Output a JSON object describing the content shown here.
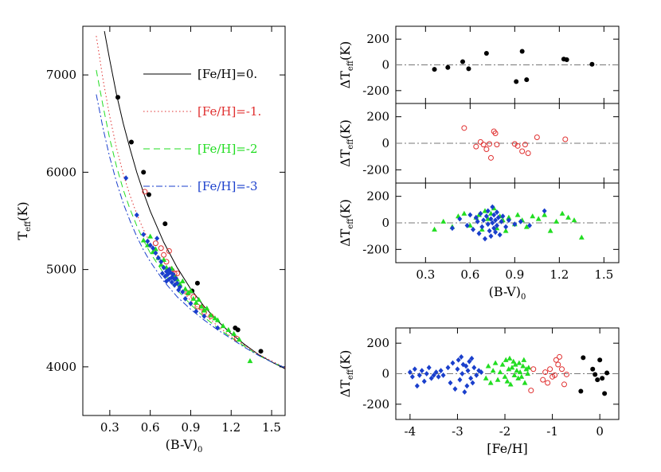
{
  "colors": {
    "fe0": "#000000",
    "fe-1": "#e03030",
    "fe-2": "#22dd22",
    "fe-3": "#1a3fcc",
    "zero_line": "#777777"
  },
  "chart_data": [
    {
      "id": "main",
      "type": "scatter",
      "xlabel": "(B-V)",
      "xlabel_sub": "0",
      "ylabel": "T",
      "ylabel_sub": "eff",
      "ylabel_suffix": "(K)",
      "xlim": [
        0.1,
        1.6
      ],
      "ylim": [
        3500,
        7500
      ],
      "xticks": [
        "0.3",
        "0.6",
        "0.9",
        "1.2",
        "1.5"
      ],
      "yticks": [
        "4000",
        "5000",
        "6000",
        "7000"
      ],
      "legend": [
        {
          "label": "[Fe/H]=0.",
          "series": "fe0"
        },
        {
          "label": "[Fe/H]=-1.",
          "series": "fe-1"
        },
        {
          "label": "[Fe/H]=-2",
          "series": "fe-2"
        },
        {
          "label": "[Fe/H]=-3",
          "series": "fe-3"
        }
      ],
      "curves": [
        {
          "series": "fe0",
          "style": "solid",
          "x": [
            0.26,
            0.3,
            0.35,
            0.4,
            0.45,
            0.5,
            0.55,
            0.6,
            0.7,
            0.8,
            0.9,
            1.0,
            1.1,
            1.2,
            1.3,
            1.4,
            1.5,
            1.6
          ],
          "y": [
            7450,
            7150,
            6800,
            6500,
            6240,
            6000,
            5790,
            5600,
            5280,
            5020,
            4800,
            4620,
            4470,
            4340,
            4230,
            4130,
            4050,
            3980
          ]
        },
        {
          "series": "fe-1",
          "style": "dotted",
          "x": [
            0.2,
            0.25,
            0.3,
            0.35,
            0.4,
            0.45,
            0.5,
            0.55,
            0.6,
            0.7,
            0.8,
            0.9,
            1.0,
            1.1,
            1.2,
            1.3,
            1.4,
            1.5,
            1.6
          ],
          "y": [
            7400,
            6950,
            6570,
            6250,
            5980,
            5760,
            5570,
            5410,
            5270,
            5030,
            4840,
            4680,
            4540,
            4420,
            4310,
            4220,
            4130,
            4060,
            3990
          ]
        },
        {
          "series": "fe-2",
          "style": "dashed",
          "x": [
            0.2,
            0.25,
            0.3,
            0.35,
            0.4,
            0.45,
            0.5,
            0.55,
            0.6,
            0.7,
            0.8,
            0.9,
            1.0,
            1.1,
            1.2,
            1.3,
            1.4,
            1.5,
            1.6
          ],
          "y": [
            7050,
            6680,
            6340,
            6060,
            5820,
            5620,
            5450,
            5300,
            5170,
            4960,
            4790,
            4640,
            4510,
            4400,
            4300,
            4210,
            4120,
            4050,
            3990
          ]
        },
        {
          "series": "fe-3",
          "style": "dashdot",
          "x": [
            0.2,
            0.25,
            0.3,
            0.35,
            0.4,
            0.45,
            0.5,
            0.55,
            0.6,
            0.7,
            0.8,
            0.9,
            1.0,
            1.1,
            1.2,
            1.3,
            1.4,
            1.5,
            1.6
          ],
          "y": [
            6800,
            6450,
            6150,
            5900,
            5680,
            5500,
            5340,
            5200,
            5080,
            4880,
            4720,
            4590,
            4480,
            4380,
            4290,
            4200,
            4120,
            4050,
            3990
          ]
        }
      ],
      "points": [
        {
          "series": "fe0",
          "marker": "dot",
          "x": [
            0.36,
            0.46,
            0.55,
            0.59,
            0.71,
            0.91,
            0.95,
            1.23,
            1.25,
            1.42
          ],
          "y": [
            6770,
            6310,
            6000,
            5770,
            5470,
            4780,
            4860,
            4400,
            4380,
            4160
          ]
        },
        {
          "series": "fe-1",
          "marker": "open-circle",
          "x": [
            0.56,
            0.64,
            0.68,
            0.7,
            0.72,
            0.74,
            0.75,
            0.76,
            0.78,
            0.8,
            0.88,
            0.92,
            0.95,
            0.98,
            1.0,
            1.05,
            1.24
          ],
          "y": [
            5800,
            5270,
            5220,
            5150,
            5080,
            5190,
            5000,
            4990,
            4960,
            4960,
            4760,
            4720,
            4620,
            4610,
            4560,
            4520,
            4290
          ]
        },
        {
          "series": "fe-2",
          "marker": "triangle",
          "x": [
            0.55,
            0.58,
            0.6,
            0.62,
            0.64,
            0.66,
            0.68,
            0.7,
            0.72,
            0.74,
            0.76,
            0.78,
            0.8,
            0.82,
            0.84,
            0.86,
            0.88,
            0.9,
            0.92,
            0.94,
            0.96,
            0.98,
            1.0,
            1.02,
            1.05,
            1.08,
            1.1,
            1.14,
            1.18,
            1.22,
            1.26,
            1.34
          ],
          "y": [
            5300,
            5250,
            5340,
            5180,
            5210,
            5120,
            5050,
            5100,
            5020,
            4980,
            5010,
            4930,
            4900,
            4850,
            4880,
            4800,
            4760,
            4780,
            4700,
            4660,
            4690,
            4620,
            4580,
            4600,
            4530,
            4500,
            4480,
            4420,
            4380,
            4340,
            4280,
            4060
          ]
        },
        {
          "series": "fe-3",
          "marker": "diamond",
          "x": [
            0.42,
            0.5,
            0.55,
            0.58,
            0.6,
            0.62,
            0.64,
            0.65,
            0.66,
            0.68,
            0.69,
            0.7,
            0.71,
            0.72,
            0.72,
            0.73,
            0.74,
            0.74,
            0.75,
            0.76,
            0.76,
            0.77,
            0.78,
            0.78,
            0.79,
            0.8,
            0.81,
            0.82,
            0.84,
            0.86,
            0.9,
            0.94,
            1.0,
            1.1
          ],
          "y": [
            5940,
            5560,
            5360,
            5290,
            5250,
            5220,
            5170,
            5320,
            5120,
            5080,
            4960,
            5020,
            4930,
            4980,
            4880,
            4950,
            5000,
            4900,
            4970,
            4920,
            4870,
            4950,
            4900,
            4840,
            4910,
            4860,
            4790,
            4820,
            4770,
            4700,
            4650,
            4570,
            4520,
            4400
          ]
        }
      ]
    },
    {
      "id": "resid-fe0",
      "type": "scatter",
      "ylabel": "ΔT",
      "ylabel_sub": "eff",
      "ylabel_suffix": "(K)",
      "xlim": [
        0.1,
        1.6
      ],
      "ylim": [
        -300,
        300
      ],
      "yticks": [
        "200",
        "0",
        "-200"
      ],
      "points": [
        {
          "series": "fe0",
          "marker": "dot",
          "x": [
            0.36,
            0.45,
            0.55,
            0.59,
            0.71,
            0.91,
            0.95,
            0.98,
            1.23,
            1.25,
            1.42
          ],
          "y": [
            -35,
            -20,
            25,
            -30,
            90,
            -130,
            105,
            -115,
            45,
            40,
            5
          ]
        }
      ]
    },
    {
      "id": "resid-fe-1",
      "type": "scatter",
      "ylabel": "ΔT",
      "ylabel_sub": "eff",
      "ylabel_suffix": "(K)",
      "xlim": [
        0.1,
        1.6
      ],
      "ylim": [
        -300,
        300
      ],
      "yticks": [
        "200",
        "0",
        "-200"
      ],
      "points": [
        {
          "series": "fe-1",
          "marker": "open-circle",
          "x": [
            0.56,
            0.64,
            0.67,
            0.69,
            0.71,
            0.73,
            0.74,
            0.76,
            0.77,
            0.78,
            0.9,
            0.92,
            0.95,
            0.97,
            0.99,
            1.05,
            1.24
          ],
          "y": [
            115,
            -25,
            10,
            -10,
            -45,
            -5,
            -110,
            90,
            75,
            -10,
            -5,
            -20,
            -60,
            -10,
            -75,
            45,
            30
          ]
        }
      ]
    },
    {
      "id": "resid-mp",
      "type": "scatter",
      "ylabel": "ΔT",
      "ylabel_sub": "eff",
      "ylabel_suffix": "(K)",
      "xlabel": "(B-V)",
      "xlabel_sub": "0",
      "xlim": [
        0.1,
        1.6
      ],
      "ylim": [
        -300,
        300
      ],
      "xticks": [
        "0.3",
        "0.6",
        "0.9",
        "1.2",
        "1.5"
      ],
      "yticks": [
        "200",
        "0",
        "-200"
      ],
      "points": [
        {
          "series": "fe-2",
          "marker": "triangle",
          "x": [
            0.36,
            0.42,
            0.48,
            0.52,
            0.56,
            0.6,
            0.64,
            0.66,
            0.68,
            0.7,
            0.72,
            0.74,
            0.76,
            0.78,
            0.8,
            0.82,
            0.84,
            0.86,
            0.9,
            0.92,
            0.95,
            0.98,
            1.02,
            1.06,
            1.1,
            1.14,
            1.18,
            1.22,
            1.26,
            1.3,
            1.35
          ],
          "y": [
            -50,
            10,
            -30,
            50,
            70,
            -20,
            40,
            60,
            -50,
            90,
            30,
            70,
            110,
            -40,
            50,
            20,
            -60,
            40,
            -10,
            60,
            20,
            -30,
            50,
            30,
            60,
            -60,
            10,
            70,
            40,
            20,
            -110
          ]
        },
        {
          "series": "fe-3",
          "marker": "diamond",
          "x": [
            0.48,
            0.53,
            0.58,
            0.6,
            0.62,
            0.64,
            0.65,
            0.66,
            0.67,
            0.68,
            0.69,
            0.7,
            0.71,
            0.72,
            0.72,
            0.73,
            0.74,
            0.74,
            0.75,
            0.75,
            0.76,
            0.76,
            0.77,
            0.77,
            0.78,
            0.78,
            0.79,
            0.8,
            0.81,
            0.82,
            0.84,
            0.86,
            0.9,
            0.94,
            1.0,
            1.1
          ],
          "y": [
            -40,
            30,
            -20,
            60,
            -50,
            40,
            10,
            -80,
            70,
            -30,
            20,
            -120,
            50,
            -10,
            90,
            -60,
            30,
            -100,
            120,
            0,
            60,
            -40,
            20,
            -70,
            80,
            -20,
            40,
            -90,
            10,
            50,
            -30,
            20,
            -10,
            10,
            -20,
            90
          ]
        }
      ]
    },
    {
      "id": "resid-feh",
      "type": "scatter",
      "ylabel": "ΔT",
      "ylabel_sub": "eff",
      "ylabel_suffix": "(K)",
      "xlabel": "[Fe/H]",
      "xlim": [
        -4.3,
        0.4
      ],
      "ylim": [
        -300,
        300
      ],
      "xticks": [
        "-4",
        "-3",
        "-2",
        "-1",
        "0"
      ],
      "yticks": [
        "200",
        "0",
        "-200"
      ],
      "points": [
        {
          "series": "fe-3",
          "marker": "diamond",
          "x": [
            -4.0,
            -3.95,
            -3.9,
            -3.85,
            -3.8,
            -3.75,
            -3.7,
            -3.65,
            -3.6,
            -3.55,
            -3.5,
            -3.45,
            -3.4,
            -3.35,
            -3.3,
            -3.2,
            -3.15,
            -3.1,
            -3.05,
            -3.0,
            -2.98,
            -2.95,
            -2.92,
            -2.9,
            -2.88,
            -2.85,
            -2.82,
            -2.8,
            -2.78,
            -2.75,
            -2.72,
            -2.7,
            -2.68,
            -2.65,
            -2.6,
            -2.55,
            -2.5
          ],
          "y": [
            10,
            -20,
            30,
            -80,
            -10,
            20,
            -50,
            0,
            40,
            -30,
            -10,
            10,
            -20,
            20,
            -10,
            40,
            -60,
            70,
            -100,
            30,
            90,
            -40,
            110,
            0,
            60,
            -120,
            50,
            -80,
            20,
            80,
            -30,
            100,
            -60,
            40,
            -10,
            20,
            10
          ]
        },
        {
          "series": "fe-2",
          "marker": "triangle",
          "x": [
            -2.4,
            -2.35,
            -2.3,
            -2.25,
            -2.2,
            -2.15,
            -2.1,
            -2.05,
            -2.0,
            -1.98,
            -1.95,
            -1.92,
            -1.9,
            -1.88,
            -1.85,
            -1.82,
            -1.8,
            -1.78,
            -1.75,
            -1.72,
            -1.7,
            -1.68,
            -1.65,
            -1.62,
            -1.6,
            -1.58,
            -1.55,
            -1.52,
            -1.5
          ],
          "y": [
            -30,
            50,
            -60,
            20,
            70,
            -40,
            10,
            60,
            -20,
            90,
            -50,
            30,
            100,
            -70,
            40,
            80,
            -10,
            60,
            20,
            -30,
            70,
            10,
            -20,
            50,
            90,
            -60,
            30,
            0,
            40
          ]
        },
        {
          "series": "fe-1",
          "marker": "open-circle",
          "x": [
            -1.45,
            -1.4,
            -1.2,
            -1.15,
            -1.1,
            -1.05,
            -1.0,
            -0.95,
            -0.92,
            -0.88,
            -0.85,
            -0.8,
            -0.75,
            -0.7
          ],
          "y": [
            -110,
            30,
            -40,
            10,
            -60,
            30,
            -20,
            -10,
            90,
            60,
            110,
            30,
            -70,
            -5
          ]
        },
        {
          "series": "fe0",
          "marker": "dot",
          "x": [
            -0.4,
            -0.35,
            -0.15,
            -0.1,
            -0.05,
            0.0,
            0.05,
            0.1,
            0.15
          ],
          "y": [
            -115,
            105,
            30,
            -5,
            -40,
            90,
            -30,
            -130,
            5
          ]
        }
      ]
    }
  ]
}
